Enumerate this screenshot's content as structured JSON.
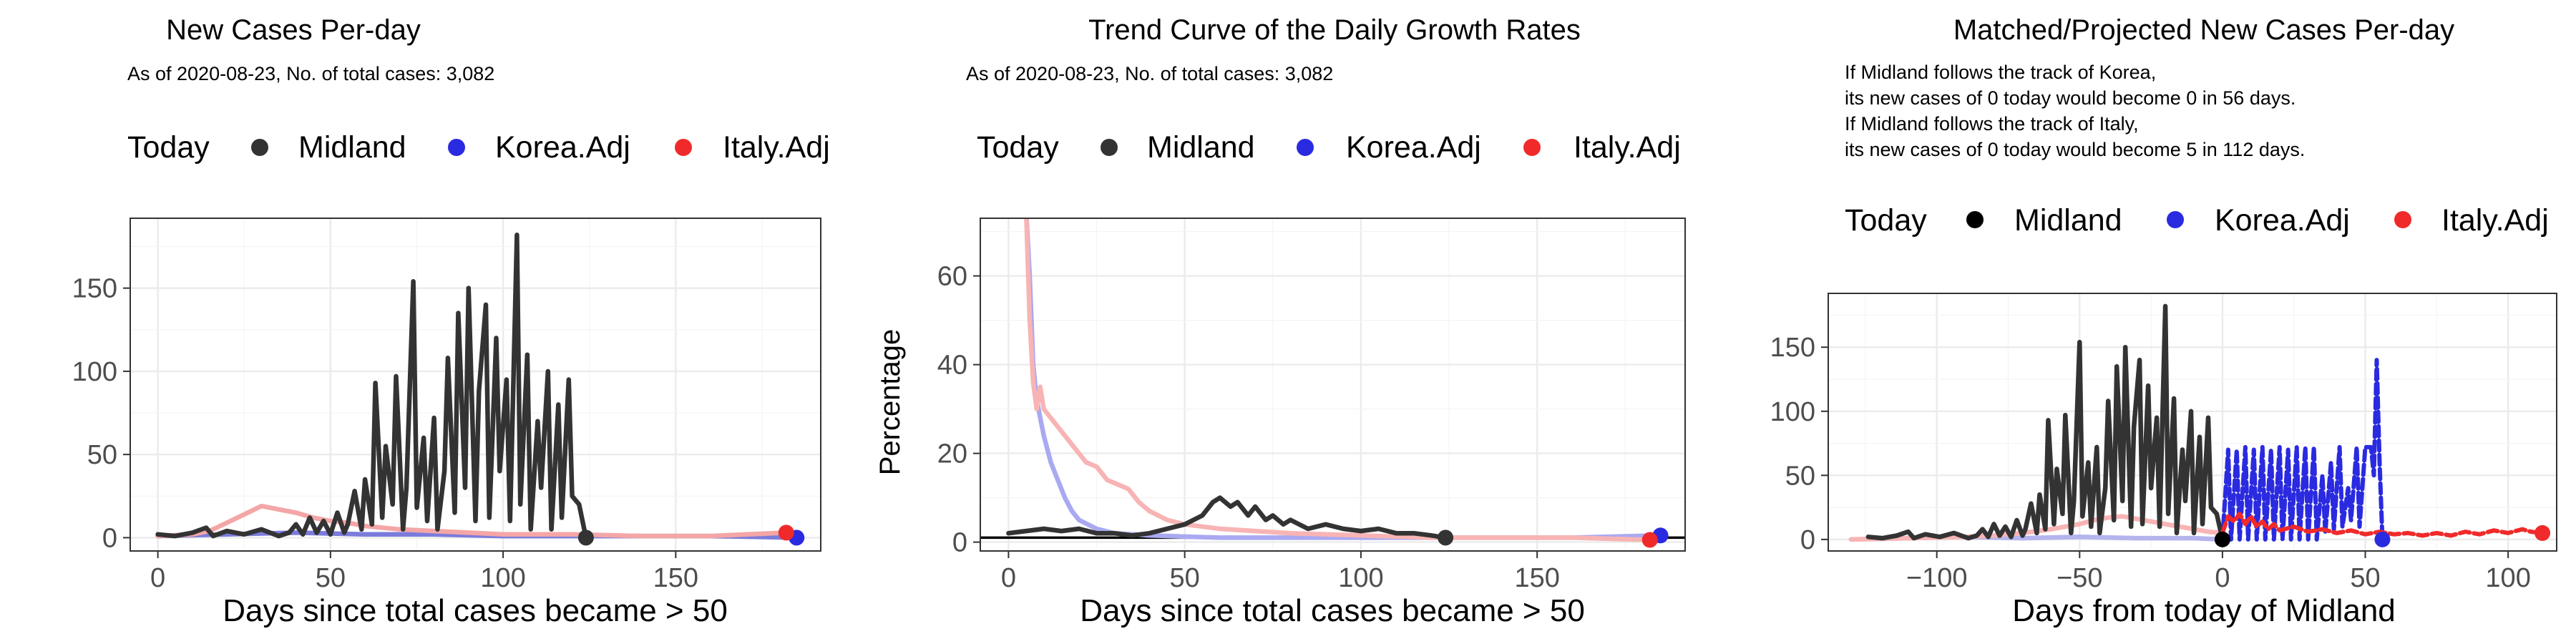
{
  "chart_data": [
    {
      "type": "line",
      "title": "New Cases Per-day",
      "subtitle": [
        "As of 2020-08-23, No. of total cases: 3,082"
      ],
      "legend": {
        "title": "Today",
        "placement": "top",
        "entries": [
          "Midland",
          "Korea.Adj",
          "Italy.Adj"
        ]
      },
      "xlabel": "Days since total cases became > 50",
      "ylabel": "",
      "xlim": [
        -8,
        192
      ],
      "ylim": [
        -8,
        192
      ],
      "xticks": [
        0,
        50,
        100,
        150
      ],
      "yticks": [
        0,
        50,
        100,
        150
      ],
      "grid": true,
      "series": [
        {
          "name": "Korea.Adj",
          "color": "#7b7bdc",
          "style": "solid",
          "x": [
            0,
            20,
            40,
            60,
            80,
            100,
            120,
            140,
            160,
            185
          ],
          "y": [
            1,
            2,
            3,
            2,
            2,
            1,
            1,
            1,
            1,
            0
          ]
        },
        {
          "name": "Italy.Adj",
          "color": "#f4a6a6",
          "style": "solid",
          "x": [
            0,
            10,
            15,
            20,
            25,
            30,
            35,
            40,
            45,
            50,
            55,
            60,
            70,
            80,
            90,
            100,
            120,
            140,
            160,
            182
          ],
          "y": [
            1,
            2,
            4,
            9,
            14,
            19,
            17,
            15,
            12,
            10,
            9,
            7,
            5,
            4,
            3,
            2,
            2,
            1,
            1,
            3
          ]
        },
        {
          "name": "Midland",
          "color": "#333333",
          "style": "solid",
          "x": [
            0,
            5,
            10,
            14,
            16,
            20,
            25,
            30,
            35,
            38,
            40,
            42,
            44,
            46,
            48,
            50,
            52,
            54,
            55,
            57,
            59,
            60,
            62,
            63,
            65,
            66,
            68,
            69,
            71,
            72,
            74,
            75,
            77,
            78,
            80,
            81,
            83,
            84,
            86,
            87,
            89,
            90,
            92,
            93,
            95,
            96,
            98,
            99,
            101,
            102,
            104,
            105,
            107,
            108,
            110,
            111,
            113,
            114,
            116,
            117,
            119,
            120,
            122,
            124
          ],
          "y": [
            2,
            1,
            3,
            6,
            1,
            4,
            2,
            5,
            1,
            3,
            8,
            2,
            12,
            3,
            10,
            2,
            15,
            3,
            8,
            28,
            5,
            35,
            8,
            93,
            12,
            55,
            20,
            97,
            5,
            30,
            154,
            18,
            60,
            10,
            72,
            5,
            40,
            108,
            15,
            135,
            30,
            150,
            10,
            88,
            140,
            12,
            120,
            40,
            95,
            10,
            182,
            20,
            110,
            5,
            70,
            30,
            100,
            5,
            80,
            12,
            95,
            25,
            20,
            0
          ]
        }
      ],
      "points": [
        {
          "series": "Midland",
          "x": 124,
          "y": 0,
          "color": "#333333"
        },
        {
          "series": "Korea.Adj",
          "x": 185,
          "y": 0,
          "color": "#2a2ae0"
        },
        {
          "series": "Italy.Adj",
          "x": 182,
          "y": 3,
          "color": "#f02a2a"
        }
      ]
    },
    {
      "type": "line",
      "title": "Trend Curve of the Daily Growth Rates",
      "subtitle": [
        "As of 2020-08-23, No. of total cases: 3,082"
      ],
      "legend": {
        "title": "Today",
        "placement": "top",
        "entries": [
          "Midland",
          "Korea.Adj",
          "Italy.Adj"
        ]
      },
      "xlabel": "Days since total cases became > 50",
      "ylabel": "Percentage",
      "xlim": [
        -8,
        192
      ],
      "ylim": [
        -2,
        73
      ],
      "xticks": [
        0,
        50,
        100,
        150
      ],
      "yticks": [
        0,
        20,
        40,
        60
      ],
      "grid": true,
      "series": [
        {
          "name": "Korea.Adj",
          "color": "#a9a9f2",
          "style": "solid",
          "x": [
            5,
            6,
            7,
            8,
            10,
            12,
            14,
            16,
            18,
            20,
            25,
            30,
            40,
            60,
            80,
            100,
            120,
            140,
            160,
            185
          ],
          "y": [
            75,
            60,
            40,
            32,
            24,
            18,
            14,
            10,
            7,
            5,
            3,
            2,
            1.5,
            1,
            1,
            1,
            1,
            1,
            1,
            1.5
          ]
        },
        {
          "name": "Italy.Adj",
          "color": "#f8b4b4",
          "style": "solid",
          "x": [
            5,
            6,
            7,
            8,
            9,
            10,
            12,
            14,
            16,
            18,
            20,
            22,
            25,
            28,
            31,
            34,
            37,
            40,
            45,
            50,
            60,
            70,
            80,
            100,
            120,
            140,
            160,
            182
          ],
          "y": [
            75,
            50,
            36,
            30,
            35,
            30,
            28,
            26,
            24,
            22,
            20,
            18,
            17,
            14,
            13,
            12,
            9,
            7,
            5,
            4,
            3,
            2.5,
            2,
            1.5,
            1,
            1,
            1,
            0.5
          ]
        },
        {
          "name": "Midland",
          "color": "#333333",
          "style": "solid",
          "x": [
            0,
            5,
            10,
            15,
            20,
            25,
            30,
            35,
            40,
            45,
            50,
            55,
            58,
            60,
            63,
            65,
            68,
            70,
            73,
            75,
            78,
            80,
            85,
            90,
            95,
            100,
            105,
            110,
            115,
            120,
            124
          ],
          "y": [
            2,
            2.5,
            3,
            2.5,
            3,
            2,
            2,
            1.5,
            2,
            3,
            4,
            6,
            9,
            10,
            8,
            9,
            6,
            8,
            5,
            6,
            4,
            5,
            3,
            4,
            3,
            2.5,
            3,
            2,
            2,
            1.5,
            1
          ]
        }
      ],
      "hline": {
        "y": 1,
        "color": "#000000"
      },
      "points": [
        {
          "series": "Midland",
          "x": 124,
          "y": 1,
          "color": "#333333"
        },
        {
          "series": "Korea.Adj",
          "x": 185,
          "y": 1.5,
          "color": "#2a2ae0"
        },
        {
          "series": "Italy.Adj",
          "x": 182,
          "y": 0.5,
          "color": "#f02a2a"
        }
      ]
    },
    {
      "type": "line",
      "title": "Matched/Projected New Cases Per-day",
      "subtitle": [
        "If Midland follows the track of Korea,",
        "its new cases of 0 today would become 0 in 56 days.",
        "If Midland follows the track of Italy,",
        "its new cases of 0 today would become 5 in 112 days."
      ],
      "legend": {
        "title": "Today",
        "placement": "top",
        "entries": [
          "Midland",
          "Korea.Adj",
          "Italy.Adj"
        ]
      },
      "xlabel": "Days from today of Midland",
      "ylabel": "",
      "xlim": [
        -138,
        117
      ],
      "ylim": [
        -9,
        192
      ],
      "xticks": [
        -100,
        -50,
        0,
        50,
        100
      ],
      "yticks": [
        0,
        50,
        100,
        150
      ],
      "grid": true,
      "series": [
        {
          "name": "Korea.Adj (matched)",
          "color": "#b4b4ee",
          "style": "solid",
          "x": [
            -130,
            -110,
            -90,
            -70,
            -50,
            -30,
            -10,
            0
          ],
          "y": [
            0,
            1,
            2,
            1,
            2,
            1,
            1,
            0
          ]
        },
        {
          "name": "Italy.Adj (matched)",
          "color": "#f8b4b4",
          "style": "solid",
          "x": [
            -130,
            -110,
            -90,
            -80,
            -70,
            -60,
            -50,
            -45,
            -40,
            -35,
            -30,
            -25,
            -20,
            -15,
            -10,
            -5,
            0
          ],
          "y": [
            0,
            1,
            2,
            3,
            5,
            8,
            12,
            15,
            17,
            18,
            16,
            14,
            12,
            10,
            8,
            6,
            5
          ]
        },
        {
          "name": "Midland",
          "color": "#333333",
          "style": "solid",
          "x": [
            -124,
            -119,
            -114,
            -110,
            -108,
            -104,
            -99,
            -94,
            -89,
            -86,
            -84,
            -82,
            -80,
            -78,
            -76,
            -74,
            -72,
            -70,
            -69,
            -67,
            -65,
            -64,
            -62,
            -61,
            -59,
            -58,
            -56,
            -55,
            -53,
            -52,
            -50,
            -49,
            -47,
            -46,
            -44,
            -43,
            -41,
            -40,
            -38,
            -37,
            -35,
            -34,
            -32,
            -31,
            -29,
            -28,
            -26,
            -25,
            -23,
            -22,
            -20,
            -19,
            -17,
            -16,
            -14,
            -13,
            -11,
            -10,
            -8,
            -7,
            -5,
            -4,
            -2,
            0
          ],
          "y": [
            2,
            1,
            3,
            6,
            1,
            4,
            2,
            5,
            1,
            3,
            8,
            2,
            12,
            3,
            10,
            2,
            15,
            3,
            8,
            28,
            5,
            35,
            8,
            93,
            12,
            55,
            20,
            97,
            5,
            30,
            154,
            18,
            60,
            10,
            72,
            5,
            40,
            108,
            15,
            135,
            30,
            150,
            10,
            88,
            140,
            12,
            120,
            40,
            95,
            10,
            182,
            20,
            110,
            5,
            70,
            30,
            100,
            5,
            80,
            12,
            95,
            25,
            20,
            0
          ]
        },
        {
          "name": "Korea.Adj (projected)",
          "color": "#2a2ae0",
          "style": "dashed",
          "x": [
            0,
            2,
            3,
            5,
            6,
            8,
            9,
            11,
            12,
            14,
            15,
            17,
            18,
            20,
            21,
            23,
            24,
            26,
            27,
            29,
            30,
            32,
            33,
            35,
            36,
            38,
            39,
            41,
            42,
            44,
            45,
            47,
            48,
            50,
            52,
            53,
            54,
            55,
            56
          ],
          "y": [
            0,
            70,
            0,
            70,
            0,
            72,
            0,
            70,
            0,
            72,
            0,
            70,
            0,
            72,
            0,
            70,
            0,
            72,
            0,
            72,
            0,
            72,
            0,
            50,
            5,
            60,
            8,
            72,
            10,
            40,
            15,
            72,
            10,
            72,
            72,
            50,
            140,
            60,
            0
          ]
        },
        {
          "name": "Italy.Adj (projected)",
          "color": "#f02a2a",
          "style": "dashed",
          "x": [
            0,
            2,
            4,
            6,
            8,
            10,
            12,
            14,
            16,
            18,
            20,
            25,
            30,
            35,
            40,
            45,
            50,
            55,
            60,
            65,
            70,
            75,
            80,
            85,
            90,
            95,
            100,
            105,
            108,
            112
          ],
          "y": [
            5,
            18,
            14,
            20,
            12,
            18,
            10,
            14,
            8,
            12,
            7,
            10,
            6,
            8,
            5,
            7,
            4,
            6,
            4,
            5,
            3,
            5,
            3,
            6,
            4,
            7,
            5,
            8,
            6,
            5
          ]
        }
      ],
      "points": [
        {
          "series": "Midland",
          "x": 0,
          "y": 0,
          "color": "#000000"
        },
        {
          "series": "Korea.Adj",
          "x": 56,
          "y": 0,
          "color": "#2a2ae0"
        },
        {
          "series": "Italy.Adj",
          "x": 112,
          "y": 5,
          "color": "#f02a2a"
        }
      ]
    }
  ]
}
